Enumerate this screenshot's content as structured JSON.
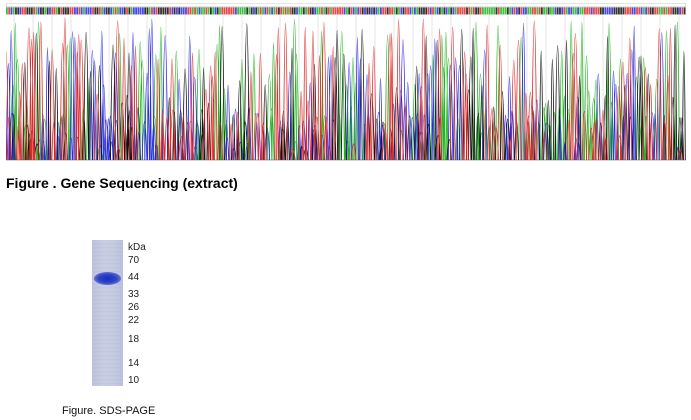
{
  "sequencing": {
    "title": "Figure . Gene Sequencing (extract)",
    "trace_colors": {
      "A": "#21b521",
      "C": "#2a2ae0",
      "G": "#111111",
      "T": "#e02a2a"
    },
    "grid_color": "#bfbfbf"
  },
  "gel": {
    "unit_label": "kDa",
    "markers": [
      "70",
      "44",
      "33",
      "26",
      "22",
      "18",
      "14",
      "10"
    ],
    "caption": "Figure. SDS-PAGE",
    "band_color": "#1a2fc2",
    "lane_color": "#c3c8e0"
  }
}
